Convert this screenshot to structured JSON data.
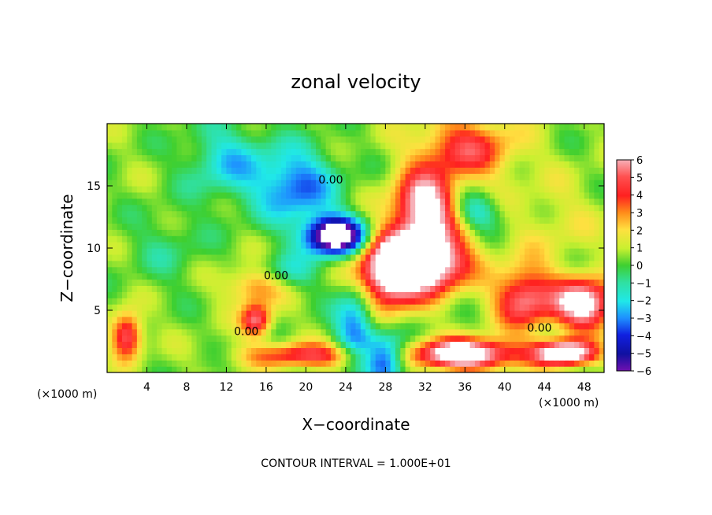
{
  "chart_data": {
    "type": "heatmap",
    "title": "zonal velocity",
    "xlabel": "X−coordinate",
    "ylabel": "Z−coordinate",
    "x_unit": "(×1000 m)",
    "y_unit": "(×1000 m)",
    "footer": "CONTOUR INTERVAL = 1.000E+01",
    "xlim": [
      0,
      50
    ],
    "ylim": [
      0,
      20
    ],
    "x_ticks": [
      4,
      8,
      12,
      16,
      20,
      24,
      28,
      32,
      36,
      40,
      44,
      48
    ],
    "y_ticks": [
      5,
      10,
      15
    ],
    "colorbar": {
      "min": -6,
      "max": 6,
      "ticks": [
        "6",
        "5",
        "4",
        "3",
        "2",
        "1",
        "0",
        "−1",
        "−2",
        "−3",
        "−4",
        "−5",
        "−6"
      ]
    },
    "contour_labels": [
      {
        "text": "0.00",
        "x": 22.5,
        "y": 15.2
      },
      {
        "text": "0.00",
        "x": 17.0,
        "y": 7.5
      },
      {
        "text": "0.00",
        "x": 14.0,
        "y": 3.0
      },
      {
        "text": "0.00",
        "x": 43.5,
        "y": 3.3
      }
    ]
  }
}
